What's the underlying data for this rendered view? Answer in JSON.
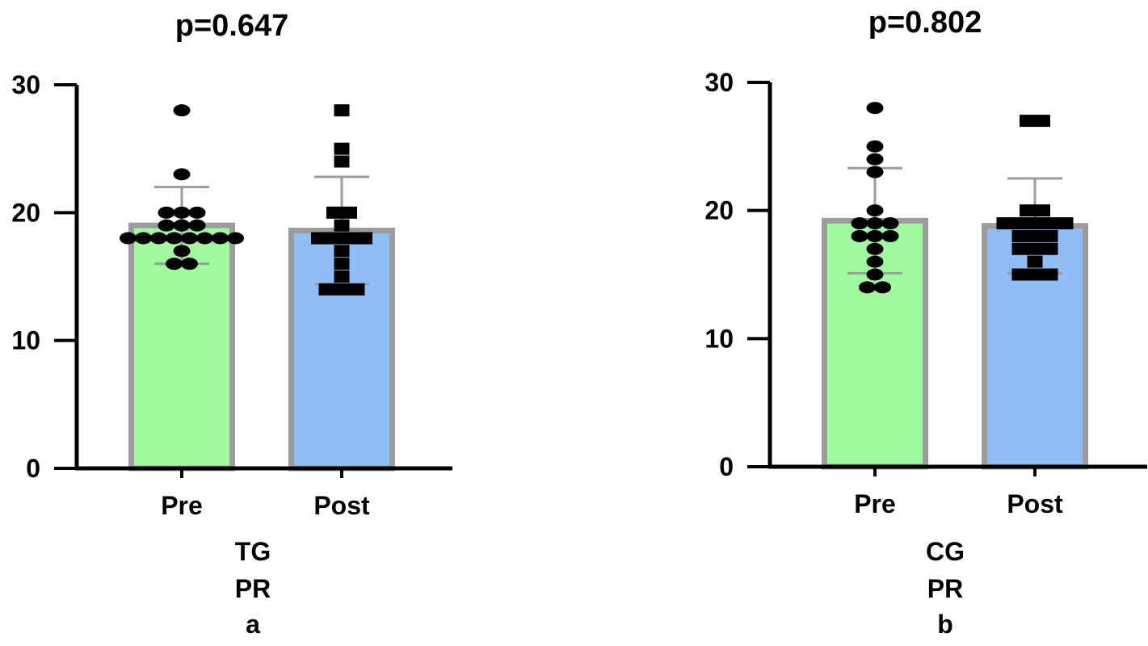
{
  "chart_data": [
    {
      "type": "bar",
      "title": "p=0.647",
      "xlabel_lines": [
        "TG",
        "PR",
        "a"
      ],
      "ylim": [
        0,
        30
      ],
      "yticks": [
        0,
        10,
        20,
        30
      ],
      "categories": [
        "Pre",
        "Post"
      ],
      "means": [
        19.0,
        18.6
      ],
      "sd": [
        3.0,
        4.2
      ],
      "bar_colors": [
        "#a0fb9f",
        "#8fbdf7"
      ],
      "marker_shapes": [
        "circle",
        "square"
      ],
      "points": [
        [
          28,
          23,
          20,
          20,
          20,
          19,
          19,
          19,
          18,
          18,
          18,
          18,
          18,
          18,
          18,
          18,
          17,
          16,
          16
        ],
        [
          28,
          25,
          24,
          20,
          20,
          19,
          18,
          18,
          18,
          18,
          17,
          16,
          15,
          14,
          14,
          14
        ]
      ],
      "grid": false,
      "legend": "none"
    },
    {
      "type": "bar",
      "title": "p=0.802",
      "xlabel_lines": [
        "CG",
        "PR",
        "b"
      ],
      "ylim": [
        0,
        30
      ],
      "yticks": [
        0,
        10,
        20,
        30
      ],
      "categories": [
        "Pre",
        "Post"
      ],
      "means": [
        19.2,
        18.8
      ],
      "sd": [
        4.1,
        3.7
      ],
      "bar_colors": [
        "#a0fb9f",
        "#8fbdf7"
      ],
      "marker_shapes": [
        "circle",
        "square"
      ],
      "points": [
        [
          28,
          25,
          24,
          23,
          20,
          19,
          19,
          19,
          18,
          18,
          18,
          17,
          16,
          15,
          14,
          14
        ],
        [
          27,
          27,
          20,
          20,
          19,
          19,
          19,
          19,
          19,
          18,
          18,
          18,
          17,
          17,
          17,
          16,
          15,
          15,
          15
        ]
      ],
      "grid": false,
      "legend": "none"
    }
  ]
}
